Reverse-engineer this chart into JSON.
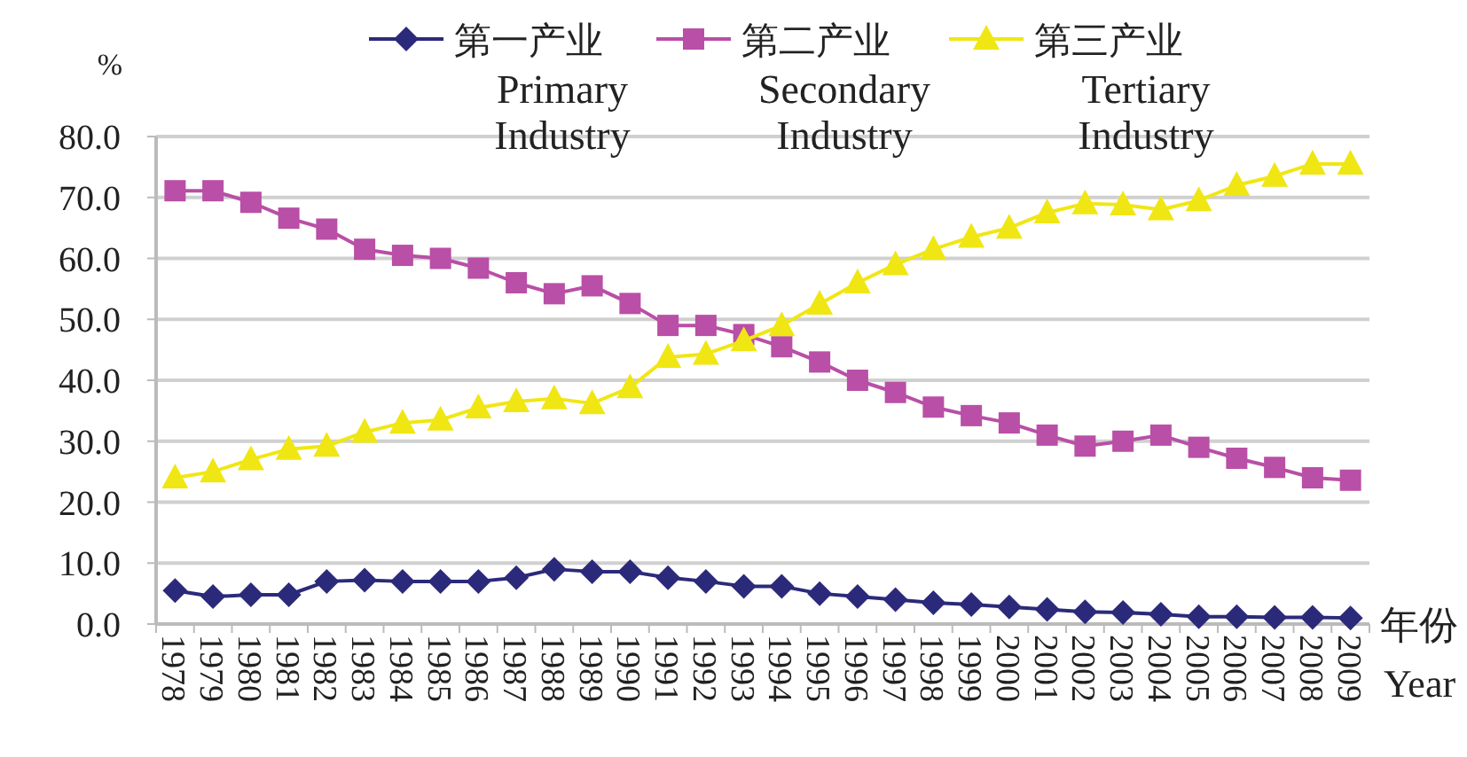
{
  "chart_data": {
    "type": "line",
    "ylabel": "%",
    "xlabel": "年份 Year",
    "categories": [
      "1978",
      "1979",
      "1980",
      "1981",
      "1982",
      "1983",
      "1984",
      "1985",
      "1986",
      "1987",
      "1988",
      "1989",
      "1990",
      "1991",
      "1992",
      "1993",
      "1994",
      "1995",
      "1996",
      "1997",
      "1998",
      "1999",
      "2000",
      "2001",
      "2002",
      "2003",
      "2004",
      "2005",
      "2006",
      "2007",
      "2008",
      "2009"
    ],
    "series": [
      {
        "name": "第一产业",
        "color": "#2b2a7a",
        "marker": "diamond",
        "values": [
          5.5,
          4.5,
          4.8,
          4.8,
          7.0,
          7.2,
          7.0,
          7.0,
          7.0,
          7.6,
          9.0,
          8.6,
          8.6,
          7.6,
          7.0,
          6.2,
          6.2,
          5.0,
          4.5,
          4.0,
          3.5,
          3.2,
          2.8,
          2.4,
          2.0,
          1.9,
          1.6,
          1.2,
          1.2,
          1.1,
          1.1,
          1.0
        ]
      },
      {
        "name": "第二产业",
        "color": "#b94fa6",
        "marker": "square",
        "values": [
          71.1,
          71.1,
          69.2,
          66.6,
          64.8,
          61.5,
          60.5,
          60.0,
          58.4,
          56.0,
          54.2,
          55.5,
          52.6,
          49.0,
          49.0,
          47.5,
          45.5,
          43.0,
          40.0,
          38.0,
          35.6,
          34.2,
          33.0,
          31.0,
          29.2,
          30.0,
          31.0,
          29.0,
          27.2,
          25.7,
          24.0,
          23.6
        ]
      },
      {
        "name": "第三产业",
        "color": "#f0e614",
        "marker": "triangle",
        "values": [
          24.0,
          25.0,
          27.0,
          28.7,
          29.2,
          31.5,
          33.0,
          33.5,
          35.5,
          36.5,
          37.0,
          36.2,
          38.8,
          43.8,
          44.3,
          46.5,
          49.0,
          52.5,
          56.0,
          59.0,
          61.5,
          63.5,
          65.0,
          67.5,
          69.0,
          68.8,
          68.0,
          69.5,
          72.0,
          73.5,
          75.5,
          75.5
        ]
      }
    ],
    "ylim": [
      0,
      80
    ],
    "yticks": [
      {
        "value": 0,
        "label": "0.0"
      },
      {
        "value": 10,
        "label": "10.0"
      },
      {
        "value": 20,
        "label": "20.0"
      },
      {
        "value": 30,
        "label": "30.0"
      },
      {
        "value": 40,
        "label": "40.0"
      },
      {
        "value": 50,
        "label": "50.0"
      },
      {
        "value": 60,
        "label": "60.0"
      },
      {
        "value": 70,
        "label": "70.0"
      },
      {
        "value": 80,
        "label": "80.0"
      }
    ],
    "grid": "y",
    "legend": "top",
    "annotations": [
      "Primary\nIndustry",
      "Secondary\nIndustry",
      "Tertiary\nIndustry"
    ]
  }
}
